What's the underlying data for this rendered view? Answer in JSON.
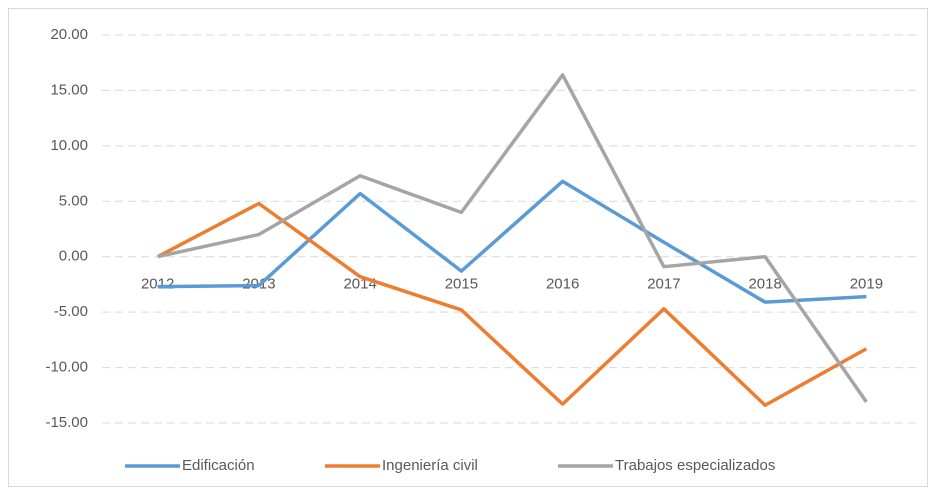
{
  "chart_data": {
    "type": "line",
    "categories": [
      "2012",
      "2013",
      "2014",
      "2015",
      "2016",
      "2017",
      "2018",
      "2019"
    ],
    "series": [
      {
        "name": "Edificación",
        "color": "#5b9bd5",
        "values": [
          -2.7,
          -2.6,
          5.7,
          -1.3,
          6.8,
          1.3,
          -4.1,
          -3.6
        ]
      },
      {
        "name": "Ingeniería civil",
        "color": "#ed7d31",
        "values": [
          0,
          4.8,
          -1.8,
          -4.8,
          -13.3,
          -4.7,
          -13.4,
          -8.3
        ]
      },
      {
        "name": "Trabajos especializados",
        "color": "#a5a5a5",
        "values": [
          0,
          2.0,
          7.3,
          4.0,
          16.4,
          -0.9,
          0,
          -13.1
        ]
      }
    ],
    "ylim": [
      -15,
      20
    ],
    "yticks": [
      {
        "value": -15,
        "label": "-15.00"
      },
      {
        "value": -10,
        "label": "-10.00"
      },
      {
        "value": -5,
        "label": "-5.00"
      },
      {
        "value": 0,
        "label": "0.00"
      },
      {
        "value": 5,
        "label": "5.00"
      },
      {
        "value": 10,
        "label": "10.00"
      },
      {
        "value": 15,
        "label": "15.00"
      },
      {
        "value": 20,
        "label": "20.00"
      }
    ],
    "grid": true,
    "legend": "bottom"
  }
}
